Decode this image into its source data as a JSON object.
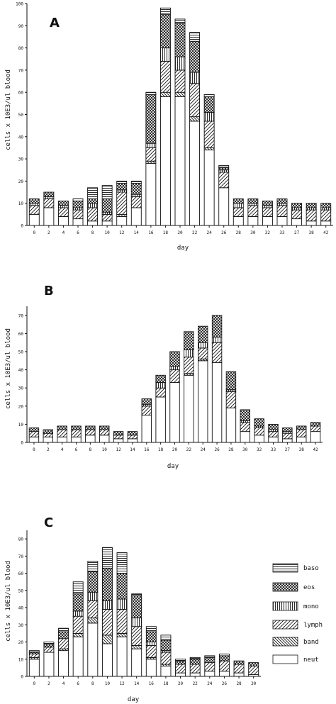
{
  "chart_data": [
    {
      "type": "bar",
      "stacked": true,
      "panel_label": "A",
      "xlabel": "day",
      "ylabel": "cells x 10E3/ul blood",
      "ylim": [
        0,
        100
      ],
      "yticks": [
        0,
        10,
        20,
        30,
        40,
        50,
        60,
        70,
        80,
        90,
        100
      ],
      "categories": [
        "0",
        "2",
        "4",
        "6",
        "8",
        "10",
        "12",
        "14",
        "16",
        "18",
        "20",
        "22",
        "24",
        "26",
        "28",
        "30",
        "32",
        "33",
        "27",
        "38",
        "42"
      ],
      "series": [
        {
          "name": "neut",
          "values": [
            5,
            8,
            4,
            3,
            2,
            2,
            4,
            8,
            28,
            58,
            58,
            47,
            34,
            17,
            4,
            4,
            4,
            4,
            3,
            2,
            2
          ]
        },
        {
          "name": "band",
          "values": [
            0,
            0,
            0,
            0,
            0,
            0,
            1,
            0,
            1,
            2,
            2,
            2,
            1,
            0,
            0,
            0,
            0,
            0,
            0,
            0,
            0
          ]
        },
        {
          "name": "lymph",
          "values": [
            4,
            4,
            4,
            4,
            6,
            3,
            10,
            5,
            6,
            14,
            10,
            15,
            12,
            7,
            4,
            5,
            4,
            5,
            4,
            5,
            5
          ]
        },
        {
          "name": "mono",
          "values": [
            1,
            1,
            1,
            1,
            2,
            1,
            1,
            1,
            2,
            6,
            6,
            5,
            4,
            1,
            2,
            1,
            1,
            1,
            1,
            1,
            1
          ]
        },
        {
          "name": "eos",
          "values": [
            2,
            2,
            2,
            3,
            2,
            6,
            3,
            5,
            22,
            15,
            15,
            14,
            7,
            1,
            2,
            2,
            2,
            2,
            2,
            2,
            2
          ]
        },
        {
          "name": "baso",
          "values": [
            0,
            0,
            0,
            1,
            5,
            6,
            1,
            1,
            1,
            3,
            2,
            4,
            1,
            1,
            0,
            0,
            0,
            0,
            0,
            0,
            0
          ]
        }
      ]
    },
    {
      "type": "bar",
      "stacked": true,
      "panel_label": "B",
      "xlabel": "day",
      "ylabel": "cells x 10E3/ul blood",
      "ylim": [
        0,
        75
      ],
      "yticks": [
        0,
        10,
        20,
        30,
        40,
        50,
        60,
        70
      ],
      "categories": [
        "0",
        "2",
        "4",
        "6",
        "8",
        "10",
        "12",
        "14",
        "16",
        "18",
        "20",
        "22",
        "24",
        "26",
        "28",
        "30",
        "32",
        "33",
        "27",
        "38",
        "42"
      ],
      "series": [
        {
          "name": "neut",
          "values": [
            3,
            3,
            3,
            3,
            4,
            4,
            2,
            2,
            15,
            25,
            33,
            37,
            45,
            44,
            19,
            6,
            4,
            3,
            2,
            3,
            6
          ]
        },
        {
          "name": "band",
          "values": [
            0,
            0,
            0,
            0,
            0,
            0,
            0,
            0,
            0,
            0,
            0,
            1,
            1,
            0,
            0,
            0,
            0,
            0,
            0,
            0,
            0
          ]
        },
        {
          "name": "lymph",
          "values": [
            3,
            2,
            4,
            4,
            3,
            3,
            2,
            2,
            5,
            5,
            7,
            9,
            6,
            11,
            9,
            5,
            4,
            3,
            3,
            4,
            3
          ]
        },
        {
          "name": "mono",
          "values": [
            0,
            0,
            0,
            0,
            0,
            0,
            0,
            0,
            1,
            3,
            2,
            4,
            3,
            3,
            1,
            1,
            1,
            1,
            1,
            0,
            0
          ]
        },
        {
          "name": "eos",
          "values": [
            2,
            2,
            2,
            2,
            2,
            2,
            2,
            2,
            3,
            4,
            8,
            10,
            9,
            12,
            10,
            6,
            4,
            3,
            2,
            2,
            2
          ]
        },
        {
          "name": "baso",
          "values": [
            0,
            0,
            0,
            0,
            0,
            0,
            0,
            0,
            0,
            0,
            0,
            0,
            0,
            0,
            0,
            0,
            0,
            0,
            0,
            0,
            0
          ]
        }
      ]
    },
    {
      "type": "bar",
      "stacked": true,
      "panel_label": "C",
      "xlabel": "day",
      "ylabel": "cells x 10E3/ul blood",
      "ylim": [
        0,
        85
      ],
      "yticks": [
        0,
        10,
        20,
        30,
        40,
        50,
        60,
        70,
        80
      ],
      "categories": [
        "0",
        "2",
        "4",
        "6",
        "8",
        "10",
        "12",
        "14",
        "16",
        "18",
        "20",
        "22",
        "24",
        "26",
        "28",
        "30"
      ],
      "series": [
        {
          "name": "neut",
          "values": [
            10,
            14,
            15,
            23,
            31,
            19,
            23,
            16,
            10,
            6,
            2,
            2,
            3,
            3,
            2,
            1
          ]
        },
        {
          "name": "band",
          "values": [
            1,
            0,
            1,
            2,
            3,
            5,
            2,
            2,
            1,
            1,
            0,
            0,
            0,
            0,
            0,
            0
          ]
        },
        {
          "name": "lymph",
          "values": [
            2,
            3,
            6,
            10,
            10,
            15,
            14,
            11,
            7,
            7,
            5,
            5,
            5,
            6,
            5,
            5
          ]
        },
        {
          "name": "mono",
          "values": [
            0,
            0,
            0,
            3,
            5,
            5,
            6,
            5,
            2,
            1,
            0,
            0,
            0,
            0,
            0,
            0
          ]
        },
        {
          "name": "eos",
          "values": [
            1,
            2,
            4,
            10,
            12,
            19,
            15,
            13,
            6,
            6,
            2,
            3,
            3,
            3,
            2,
            2
          ]
        },
        {
          "name": "baso",
          "values": [
            1,
            1,
            2,
            7,
            6,
            12,
            12,
            1,
            3,
            3,
            1,
            1,
            1,
            1,
            0,
            0
          ]
        }
      ]
    }
  ],
  "legend": {
    "items": [
      {
        "key": "baso",
        "label": "baso"
      },
      {
        "key": "eos",
        "label": "eos"
      },
      {
        "key": "mono",
        "label": "mono"
      },
      {
        "key": "lymph",
        "label": "lymph"
      },
      {
        "key": "band",
        "label": "band"
      },
      {
        "key": "neut",
        "label": "neut"
      }
    ]
  }
}
